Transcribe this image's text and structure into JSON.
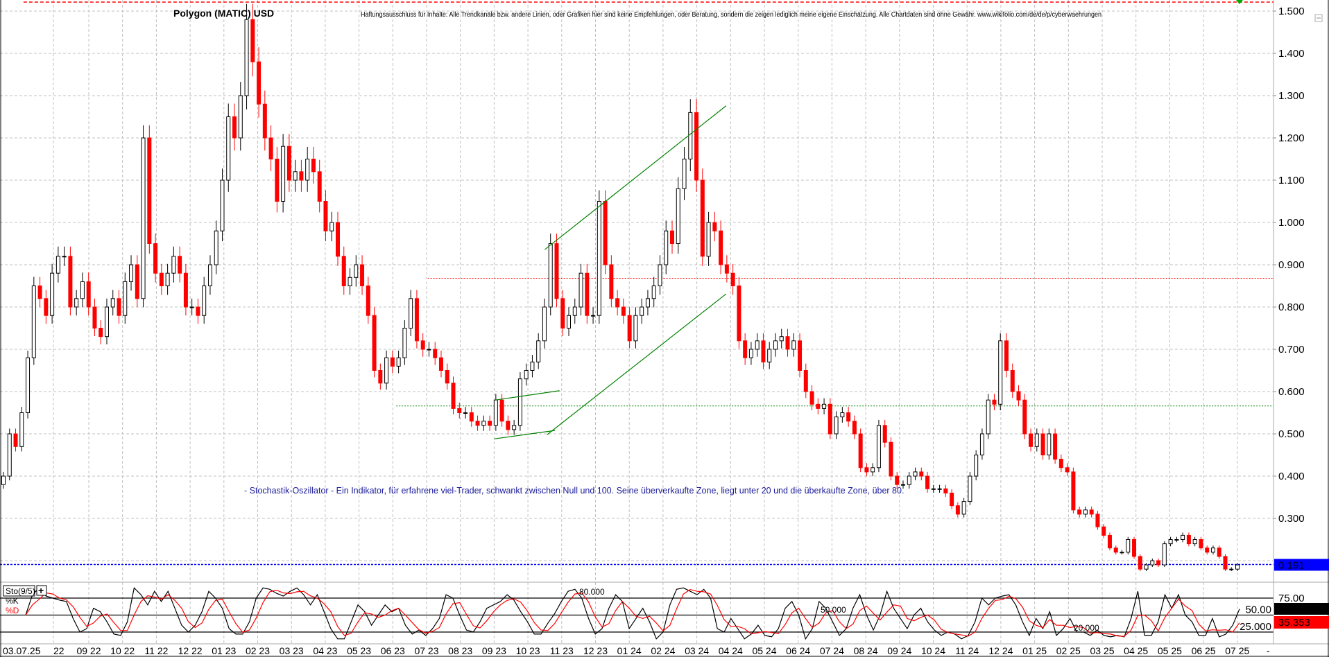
{
  "header": {
    "title": "Polygon (MATIC) USD",
    "disclaimer": "Haftungsausschluss für Inhalte: Alle Trendkanäle bzw. andere Linien, oder Grafiken hier sind keine Empfehlungen, oder Beratung, sondern die zeigen lediglich meine eigene Einschätzung. Alle Chartdaten sind ohne Gewähr. www.wikifolio.com/de/de/p/cyberwaehrungen"
  },
  "annotation": "- Stochastik-Oszillator - Ein Indikator, für erfahrene viel-Trader, schwankt zwischen Null und 100. Seine überverkaufte Zone, liegt unter 20 und die überkaufte Zone, über 80.",
  "colors": {
    "up": "#000000",
    "down": "#ff0000",
    "trendline": "#008000",
    "last_price": "#0000ff",
    "k_line": "#000000",
    "d_line": "#ff0000"
  },
  "chart_data": [
    {
      "type": "candlestick",
      "title": "Polygon (MATIC) USD",
      "period": {
        "from": "2022-07",
        "to": "2025-07"
      },
      "ylim": [
        0.15,
        1.53
      ],
      "y_ticks": [
        "1.500",
        "1.400",
        "1.300",
        "1.200",
        "1.100",
        "1.000",
        "0.900",
        "0.800",
        "0.700",
        "0.600",
        "0.500",
        "0.400",
        "0.300"
      ],
      "x_ticks": [
        "03.07.25",
        "22",
        "09 22",
        "10 22",
        "11 22",
        "12 22",
        "01 23",
        "02 23",
        "03 23",
        "04 23",
        "05 23",
        "06 23",
        "07 23",
        "08 23",
        "09 23",
        "10 23",
        "11 23",
        "12 23",
        "01 24",
        "02 24",
        "03 24",
        "04 24",
        "05 24",
        "06 24",
        "07 24",
        "08 24",
        "09 24",
        "10 24",
        "11 24",
        "12 24",
        "01 25",
        "02 25",
        "03 25",
        "04 25",
        "05 25",
        "06 25",
        "07 25"
      ],
      "x_end_marker": "-",
      "grid": true,
      "close": [
        0.4,
        0.5,
        0.47,
        0.55,
        0.68,
        0.85,
        0.82,
        0.78,
        0.88,
        0.92,
        0.92,
        0.8,
        0.82,
        0.86,
        0.8,
        0.75,
        0.73,
        0.8,
        0.82,
        0.78,
        0.86,
        0.9,
        0.82,
        1.2,
        0.95,
        0.88,
        0.85,
        0.88,
        0.92,
        0.88,
        0.8,
        0.8,
        0.78,
        0.85,
        0.9,
        0.98,
        1.1,
        1.25,
        1.2,
        1.3,
        1.48,
        1.38,
        1.28,
        1.2,
        1.15,
        1.05,
        1.18,
        1.1,
        1.12,
        1.1,
        1.15,
        1.12,
        1.05,
        0.98,
        1.0,
        0.92,
        0.85,
        0.87,
        0.9,
        0.85,
        0.78,
        0.65,
        0.62,
        0.68,
        0.66,
        0.68,
        0.75,
        0.82,
        0.72,
        0.7,
        0.7,
        0.68,
        0.65,
        0.62,
        0.56,
        0.55,
        0.55,
        0.53,
        0.52,
        0.53,
        0.52,
        0.58,
        0.53,
        0.51,
        0.52,
        0.63,
        0.65,
        0.67,
        0.72,
        0.8,
        0.95,
        0.82,
        0.75,
        0.78,
        0.8,
        0.88,
        0.78,
        0.78,
        1.05,
        0.9,
        0.82,
        0.8,
        0.78,
        0.72,
        0.78,
        0.8,
        0.82,
        0.85,
        0.9,
        0.98,
        0.95,
        1.08,
        1.15,
        1.26,
        1.1,
        0.92,
        1.0,
        0.98,
        0.9,
        0.88,
        0.85,
        0.72,
        0.68,
        0.7,
        0.72,
        0.67,
        0.7,
        0.72,
        0.73,
        0.7,
        0.72,
        0.65,
        0.6,
        0.57,
        0.56,
        0.57,
        0.5,
        0.54,
        0.55,
        0.53,
        0.5,
        0.42,
        0.41,
        0.42,
        0.52,
        0.48,
        0.4,
        0.38,
        0.38,
        0.4,
        0.41,
        0.4,
        0.37,
        0.37,
        0.37,
        0.36,
        0.33,
        0.31,
        0.34,
        0.4,
        0.45,
        0.5,
        0.58,
        0.57,
        0.72,
        0.65,
        0.6,
        0.58,
        0.5,
        0.47,
        0.5,
        0.45,
        0.5,
        0.44,
        0.42,
        0.41,
        0.32,
        0.31,
        0.32,
        0.31,
        0.28,
        0.26,
        0.23,
        0.22,
        0.22,
        0.25,
        0.21,
        0.18,
        0.19,
        0.2,
        0.19,
        0.24,
        0.25,
        0.25,
        0.26,
        0.24,
        0.25,
        0.23,
        0.22,
        0.23,
        0.21,
        0.18,
        0.18,
        0.19
      ],
      "last_price": 0.191,
      "last_price_label": "0.191",
      "trendlines": [
        {
          "from": [
            "2023-10-16",
            0.936
          ],
          "to": [
            "2024-03-27",
            1.276
          ]
        },
        {
          "from": [
            "2023-10-18",
            0.498
          ],
          "to": [
            "2024-03-27",
            0.831
          ]
        },
        {
          "from": [
            "2023-09-02",
            0.58
          ],
          "to": [
            "2023-10-29",
            0.602
          ]
        },
        {
          "from": [
            "2023-09-01",
            0.488
          ],
          "to": [
            "2023-10-25",
            0.508
          ]
        }
      ],
      "horizontal_lines": [
        {
          "price": 0.868,
          "from": "2023-07-02",
          "color": "#ff0000"
        },
        {
          "price": 0.566,
          "from": "2023-06-04",
          "color": "#008000"
        },
        {
          "price": 1.52,
          "from": "2022-07-03",
          "color": "#ff0000"
        }
      ]
    },
    {
      "type": "line",
      "label": "Sto(9/5)",
      "series": [
        {
          "name": "%K",
          "values": [
            50,
            80,
            90,
            78,
            75,
            72,
            70,
            45,
            25,
            30,
            60,
            55,
            40,
            22,
            20,
            40,
            90,
            80,
            65,
            85,
            70,
            85,
            60,
            35,
            25,
            35,
            55,
            85,
            75,
            60,
            30,
            22,
            22,
            40,
            75,
            90,
            88,
            82,
            78,
            85,
            90,
            80,
            65,
            80,
            55,
            30,
            15,
            15,
            40,
            65,
            55,
            35,
            50,
            65,
            55,
            60,
            35,
            22,
            28,
            20,
            30,
            45,
            80,
            75,
            50,
            28,
            25,
            40,
            60,
            65,
            70,
            80,
            72,
            55,
            40,
            22,
            22,
            38,
            52,
            70,
            85,
            88,
            75,
            45,
            22,
            30,
            60,
            80,
            70,
            30,
            45,
            60,
            40,
            15,
            25,
            65,
            88,
            90,
            85,
            80,
            88,
            75,
            30,
            25,
            45,
            30,
            15,
            22,
            35,
            20,
            18,
            30,
            60,
            70,
            50,
            15,
            30,
            70,
            60,
            40,
            20,
            30,
            60,
            80,
            50,
            28,
            50,
            85,
            60,
            45,
            30,
            50,
            60,
            40,
            28,
            20,
            25,
            22,
            15,
            20,
            40,
            75,
            65,
            75,
            78,
            80,
            65,
            40,
            20,
            45,
            30,
            55,
            20,
            30,
            45,
            25,
            25,
            20,
            28,
            20,
            18,
            20,
            18,
            45,
            85,
            20,
            20,
            40,
            80,
            60,
            80,
            50,
            40,
            20,
            20,
            45,
            18,
            22,
            35,
            59
          ]
        },
        {
          "name": "%D"
        }
      ],
      "level_labels": [
        "80.000",
        "50.000",
        "20.000"
      ],
      "y_ticks": [
        "75.00",
        "50.00",
        "25.000"
      ],
      "k_last": "58.96",
      "d_last": "35.353"
    }
  ]
}
